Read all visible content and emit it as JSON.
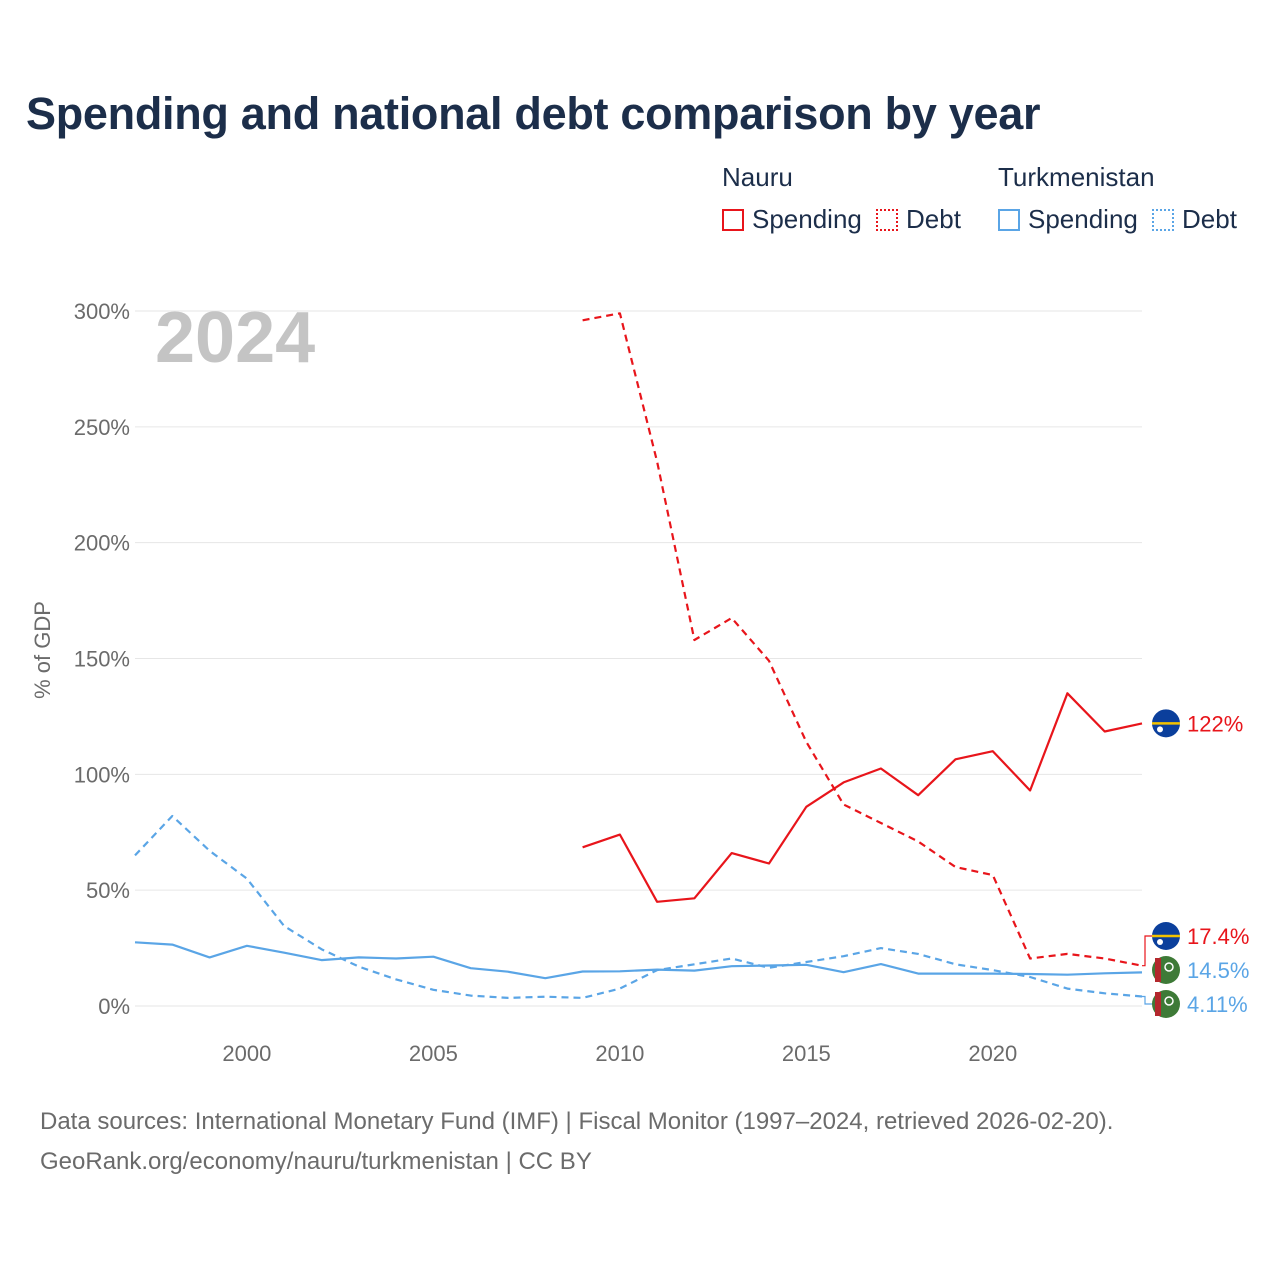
{
  "colors": {
    "nauru": "#e8151b",
    "turkmenistan": "#5aa5e6",
    "title": "#1c2e4a",
    "axis_text": "#6b6b6b",
    "year_watermark": "#c4c4c4",
    "grid": "#e6e6e6"
  },
  "legend": {
    "nauru": {
      "title": "Nauru",
      "spending": "Spending",
      "debt": "Debt"
    },
    "turkmenistan": {
      "title": "Turkmenistan",
      "spending": "Spending",
      "debt": "Debt"
    }
  },
  "footer": {
    "line1": "Data sources: International Monetary Fund (IMF) | Fiscal Monitor (1997–2024, retrieved 2026-02-20).",
    "line2": "GeoRank.org/economy/nauru/turkmenistan | CC BY"
  },
  "chart_data": {
    "type": "line",
    "title": "Spending and national debt comparison by year",
    "watermark": "2024",
    "ylabel": "% of GDP",
    "xlabel": "",
    "xlim": [
      1997,
      2024
    ],
    "ylim": [
      0,
      300
    ],
    "xticks": [
      2000,
      2005,
      2010,
      2015,
      2020
    ],
    "yticks": [
      0,
      50,
      100,
      150,
      200,
      250,
      300
    ],
    "ytick_labels": [
      "0%",
      "50%",
      "100%",
      "150%",
      "200%",
      "250%",
      "300%"
    ],
    "grid": true,
    "legend_position": "top-right",
    "series": [
      {
        "name": "Nauru Spending",
        "country": "Nauru",
        "style": "solid",
        "x": [
          2009,
          2010,
          2011,
          2012,
          2013,
          2014,
          2015,
          2016,
          2017,
          2018,
          2019,
          2020,
          2021,
          2022,
          2023,
          2024
        ],
        "values": [
          68.5,
          74,
          45,
          46.5,
          66,
          61.5,
          86,
          96.5,
          102.5,
          91,
          106.5,
          110,
          93,
          135,
          118.5,
          122
        ],
        "end_label": "122%"
      },
      {
        "name": "Nauru Debt",
        "country": "Nauru",
        "style": "dashed",
        "x": [
          2009,
          2010,
          2011,
          2012,
          2013,
          2014,
          2015,
          2016,
          2017,
          2018,
          2019,
          2020,
          2021,
          2022,
          2023,
          2024
        ],
        "values": [
          296,
          299,
          235,
          158,
          167.5,
          149,
          114,
          87,
          79,
          71,
          60,
          56.5,
          20.5,
          22.5,
          20.5,
          17.4
        ],
        "end_label": "17.4%"
      },
      {
        "name": "Turkmenistan Spending",
        "country": "Turkmenistan",
        "style": "solid",
        "x": [
          1997,
          1998,
          1999,
          2000,
          2001,
          2002,
          2003,
          2004,
          2005,
          2006,
          2007,
          2008,
          2009,
          2010,
          2011,
          2012,
          2013,
          2014,
          2015,
          2016,
          2017,
          2018,
          2019,
          2020,
          2021,
          2022,
          2023,
          2024
        ],
        "values": [
          27.5,
          26.5,
          21,
          26,
          23,
          19.8,
          21,
          20.5,
          21.3,
          16.3,
          14.8,
          12,
          14.9,
          15,
          15.7,
          15.3,
          17.2,
          17.5,
          17.8,
          14.6,
          18.1,
          14,
          14,
          14,
          13.8,
          13.5,
          14.1,
          14.5
        ],
        "end_label": "14.5%"
      },
      {
        "name": "Turkmenistan Debt",
        "country": "Turkmenistan",
        "style": "dashed",
        "x": [
          1997,
          1998,
          1999,
          2000,
          2001,
          2002,
          2003,
          2004,
          2005,
          2006,
          2007,
          2008,
          2009,
          2010,
          2011,
          2012,
          2013,
          2014,
          2015,
          2016,
          2017,
          2018,
          2019,
          2020,
          2021,
          2022,
          2023,
          2024
        ],
        "values": [
          65,
          82,
          67,
          55,
          34.5,
          24.5,
          17,
          11.5,
          7,
          4.5,
          3.5,
          4,
          3.5,
          7.5,
          15.5,
          18,
          20.5,
          16.5,
          19,
          21.5,
          25,
          22.5,
          18,
          15.5,
          12.5,
          7.5,
          5.5,
          4.11
        ],
        "end_label": "4.11%"
      }
    ]
  }
}
